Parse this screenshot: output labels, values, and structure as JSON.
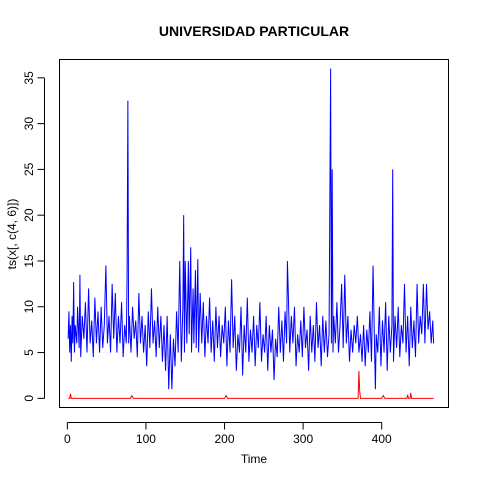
{
  "chart_data": {
    "type": "line",
    "title": "UNIVERSIDAD PARTICULAR",
    "xlabel": "Time",
    "ylabel": "ts(x[, c(4, 6)])",
    "xlim": [
      -10,
      485
    ],
    "ylim": [
      -1,
      37
    ],
    "x_ticks": [
      0,
      100,
      200,
      300,
      400
    ],
    "y_ticks": [
      0,
      5,
      10,
      15,
      20,
      25,
      30,
      35
    ],
    "grid": false,
    "legend": "none",
    "series": [
      {
        "color": "#0000ff",
        "points": [
          [
            1,
            6.5
          ],
          [
            2,
            9.5
          ],
          [
            3,
            5.0
          ],
          [
            4,
            8.0
          ],
          [
            5,
            4.0
          ],
          [
            6,
            9.0
          ],
          [
            7,
            6.0
          ],
          [
            8,
            12.7
          ],
          [
            9,
            5.0
          ],
          [
            10,
            8.0
          ],
          [
            12,
            6.0
          ],
          [
            13,
            10.0
          ],
          [
            15,
            5.5
          ],
          [
            16,
            13.5
          ],
          [
            17,
            4.5
          ],
          [
            19,
            9.0
          ],
          [
            21,
            6.5
          ],
          [
            23,
            10.5
          ],
          [
            25,
            5.0
          ],
          [
            27,
            12.0
          ],
          [
            29,
            6.0
          ],
          [
            31,
            8.5
          ],
          [
            33,
            4.5
          ],
          [
            35,
            11.0
          ],
          [
            37,
            6.0
          ],
          [
            39,
            9.5
          ],
          [
            41,
            5.0
          ],
          [
            43,
            10.0
          ],
          [
            45,
            5.5
          ],
          [
            47,
            8.0
          ],
          [
            49,
            14.5
          ],
          [
            51,
            6.0
          ],
          [
            53,
            9.0
          ],
          [
            55,
            5.0
          ],
          [
            57,
            12.5
          ],
          [
            59,
            6.5
          ],
          [
            61,
            11.5
          ],
          [
            63,
            5.0
          ],
          [
            65,
            9.0
          ],
          [
            67,
            6.0
          ],
          [
            69,
            10.5
          ],
          [
            71,
            4.5
          ],
          [
            73,
            8.0
          ],
          [
            75,
            6.0
          ],
          [
            76,
            13.5
          ],
          [
            77,
            32.5
          ],
          [
            78,
            6.0
          ],
          [
            79,
            9.0
          ],
          [
            81,
            5.0
          ],
          [
            83,
            10.0
          ],
          [
            85,
            6.5
          ],
          [
            87,
            8.5
          ],
          [
            89,
            4.5
          ],
          [
            91,
            11.5
          ],
          [
            93,
            6.0
          ],
          [
            95,
            9.0
          ],
          [
            97,
            5.0
          ],
          [
            99,
            8.0
          ],
          [
            101,
            3.5
          ],
          [
            103,
            9.5
          ],
          [
            105,
            5.5
          ],
          [
            107,
            12.0
          ],
          [
            109,
            6.0
          ],
          [
            111,
            8.5
          ],
          [
            113,
            4.5
          ],
          [
            115,
            10.0
          ],
          [
            117,
            5.5
          ],
          [
            119,
            9.0
          ],
          [
            121,
            4.0
          ],
          [
            123,
            8.0
          ],
          [
            125,
            3.0
          ],
          [
            127,
            9.0
          ],
          [
            129,
            1.0
          ],
          [
            131,
            7.0
          ],
          [
            133,
            1.0
          ],
          [
            135,
            6.5
          ],
          [
            137,
            3.5
          ],
          [
            139,
            9.5
          ],
          [
            141,
            5.0
          ],
          [
            143,
            15.0
          ],
          [
            145,
            4.0
          ],
          [
            147,
            10.0
          ],
          [
            148,
            20.0
          ],
          [
            149,
            5.0
          ],
          [
            150,
            15.0
          ],
          [
            152,
            6.0
          ],
          [
            154,
            15.0
          ],
          [
            155,
            7.0
          ],
          [
            157,
            16.5
          ],
          [
            158,
            5.0
          ],
          [
            160,
            12.0
          ],
          [
            161,
            6.0
          ],
          [
            163,
            14.0
          ],
          [
            164,
            5.5
          ],
          [
            166,
            15.2
          ],
          [
            167,
            5.0
          ],
          [
            169,
            11.5
          ],
          [
            171,
            6.0
          ],
          [
            173,
            10.5
          ],
          [
            175,
            4.5
          ],
          [
            177,
            9.0
          ],
          [
            179,
            6.0
          ],
          [
            181,
            11.0
          ],
          [
            183,
            5.0
          ],
          [
            185,
            8.5
          ],
          [
            187,
            4.0
          ],
          [
            189,
            10.0
          ],
          [
            191,
            5.5
          ],
          [
            193,
            9.0
          ],
          [
            195,
            4.5
          ],
          [
            197,
            8.0
          ],
          [
            199,
            6.0
          ],
          [
            201,
            10.0
          ],
          [
            203,
            3.5
          ],
          [
            205,
            8.5
          ],
          [
            207,
            5.0
          ],
          [
            209,
            13.0
          ],
          [
            211,
            5.5
          ],
          [
            213,
            9.0
          ],
          [
            215,
            3.0
          ],
          [
            217,
            7.0
          ],
          [
            219,
            5.0
          ],
          [
            221,
            10.0
          ],
          [
            223,
            2.5
          ],
          [
            225,
            8.0
          ],
          [
            227,
            5.0
          ],
          [
            229,
            11.0
          ],
          [
            231,
            4.0
          ],
          [
            233,
            7.5
          ],
          [
            235,
            5.0
          ],
          [
            237,
            9.0
          ],
          [
            239,
            3.5
          ],
          [
            241,
            8.0
          ],
          [
            243,
            5.5
          ],
          [
            245,
            10.5
          ],
          [
            247,
            4.0
          ],
          [
            249,
            7.0
          ],
          [
            251,
            5.0
          ],
          [
            253,
            9.0
          ],
          [
            255,
            3.0
          ],
          [
            257,
            8.0
          ],
          [
            259,
            5.0
          ],
          [
            261,
            7.5
          ],
          [
            263,
            2.0
          ],
          [
            265,
            6.5
          ],
          [
            267,
            4.5
          ],
          [
            269,
            10.0
          ],
          [
            271,
            5.0
          ],
          [
            273,
            8.5
          ],
          [
            275,
            4.0
          ],
          [
            277,
            9.5
          ],
          [
            279,
            6.0
          ],
          [
            280,
            15.0
          ],
          [
            281,
            12.0
          ],
          [
            283,
            5.0
          ],
          [
            285,
            9.0
          ],
          [
            287,
            6.0
          ],
          [
            289,
            10.0
          ],
          [
            291,
            3.5
          ],
          [
            293,
            7.0
          ],
          [
            295,
            5.0
          ],
          [
            297,
            8.5
          ],
          [
            299,
            4.5
          ],
          [
            301,
            10.0
          ],
          [
            303,
            5.5
          ],
          [
            305,
            7.5
          ],
          [
            307,
            3.0
          ],
          [
            309,
            9.0
          ],
          [
            311,
            5.0
          ],
          [
            313,
            8.0
          ],
          [
            315,
            4.0
          ],
          [
            317,
            10.5
          ],
          [
            319,
            5.5
          ],
          [
            321,
            8.0
          ],
          [
            323,
            3.5
          ],
          [
            325,
            9.0
          ],
          [
            327,
            5.0
          ],
          [
            329,
            8.5
          ],
          [
            331,
            4.5
          ],
          [
            333,
            7.0
          ],
          [
            335,
            36.0
          ],
          [
            336,
            6.0
          ],
          [
            337,
            25.0
          ],
          [
            338,
            5.0
          ],
          [
            339,
            9.0
          ],
          [
            341,
            6.0
          ],
          [
            343,
            10.5
          ],
          [
            345,
            5.0
          ],
          [
            347,
            8.0
          ],
          [
            349,
            12.5
          ],
          [
            351,
            5.5
          ],
          [
            353,
            13.5
          ],
          [
            355,
            6.0
          ],
          [
            357,
            9.0
          ],
          [
            359,
            4.0
          ],
          [
            361,
            7.5
          ],
          [
            363,
            5.0
          ],
          [
            365,
            8.0
          ],
          [
            367,
            6.0
          ],
          [
            369,
            9.0
          ],
          [
            371,
            5.0
          ],
          [
            373,
            7.0
          ],
          [
            375,
            4.0
          ],
          [
            377,
            8.0
          ],
          [
            379,
            3.5
          ],
          [
            381,
            7.5
          ],
          [
            383,
            5.0
          ],
          [
            385,
            9.5
          ],
          [
            387,
            4.0
          ],
          [
            389,
            14.5
          ],
          [
            391,
            5.0
          ],
          [
            392,
            1.0
          ],
          [
            393,
            7.0
          ],
          [
            395,
            5.0
          ],
          [
            397,
            10.0
          ],
          [
            399,
            3.5
          ],
          [
            401,
            8.5
          ],
          [
            403,
            5.0
          ],
          [
            405,
            10.5
          ],
          [
            407,
            3.0
          ],
          [
            409,
            9.0
          ],
          [
            411,
            5.0
          ],
          [
            413,
            8.0
          ],
          [
            414,
            25.0
          ],
          [
            415,
            4.0
          ],
          [
            417,
            9.0
          ],
          [
            419,
            5.5
          ],
          [
            421,
            10.0
          ],
          [
            423,
            4.5
          ],
          [
            425,
            8.0
          ],
          [
            427,
            6.0
          ],
          [
            429,
            12.5
          ],
          [
            431,
            5.0
          ],
          [
            433,
            9.0
          ],
          [
            435,
            3.5
          ],
          [
            437,
            10.0
          ],
          [
            439,
            5.5
          ],
          [
            441,
            8.5
          ],
          [
            443,
            4.5
          ],
          [
            445,
            12.5
          ],
          [
            447,
            6.0
          ],
          [
            449,
            9.0
          ],
          [
            451,
            7.0
          ],
          [
            453,
            12.5
          ],
          [
            455,
            6.0
          ],
          [
            457,
            12.5
          ],
          [
            459,
            7.5
          ],
          [
            461,
            9.5
          ],
          [
            463,
            6.0
          ],
          [
            465,
            8.5
          ],
          [
            466,
            6.0
          ]
        ]
      },
      {
        "color": "#ff0000",
        "points": [
          [
            1,
            0.0
          ],
          [
            3,
            0.0
          ],
          [
            4,
            0.5
          ],
          [
            5,
            0.0
          ],
          [
            80,
            0.0
          ],
          [
            82,
            0.3
          ],
          [
            84,
            0.0
          ],
          [
            200,
            0.0
          ],
          [
            202,
            0.3
          ],
          [
            204,
            0.0
          ],
          [
            369,
            0.0
          ],
          [
            370,
            0.0
          ],
          [
            371,
            3.0
          ],
          [
            372,
            0.8
          ],
          [
            373,
            0.0
          ],
          [
            374,
            0.0
          ],
          [
            400,
            0.0
          ],
          [
            402,
            0.3
          ],
          [
            404,
            0.0
          ],
          [
            432,
            0.0
          ],
          [
            433,
            0.4
          ],
          [
            434,
            0.0
          ],
          [
            436,
            0.0
          ],
          [
            437,
            0.6
          ],
          [
            438,
            0.0
          ],
          [
            466,
            0.0
          ]
        ]
      }
    ]
  }
}
